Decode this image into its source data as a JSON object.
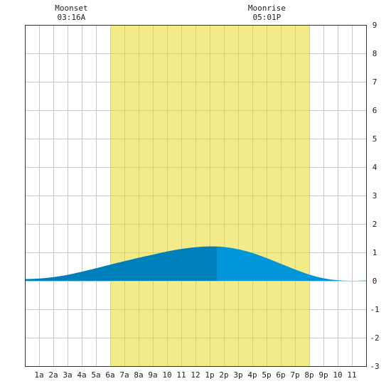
{
  "chart_data": {
    "type": "area",
    "title": "",
    "xlabel": "",
    "ylabel": "",
    "x_ticks": [
      "1a",
      "2a",
      "3a",
      "4a",
      "5a",
      "6a",
      "7a",
      "8a",
      "9a",
      "10",
      "11",
      "12",
      "1p",
      "2p",
      "3p",
      "4p",
      "5p",
      "6p",
      "7p",
      "8p",
      "9p",
      "10",
      "11"
    ],
    "y_ticks": [
      -3,
      -2,
      -1,
      0,
      1,
      2,
      3,
      4,
      5,
      6,
      7,
      8,
      9
    ],
    "xlim": [
      0,
      24
    ],
    "ylim": [
      -3,
      9
    ],
    "grid": true,
    "daylight": {
      "start_hour": 6.0,
      "end_hour": 20.0
    },
    "series": [
      {
        "values": [
          [
            0,
            0.06
          ],
          [
            1,
            0.08
          ],
          [
            2,
            0.13
          ],
          [
            3,
            0.21
          ],
          [
            4,
            0.32
          ],
          [
            5,
            0.44
          ],
          [
            6,
            0.57
          ],
          [
            7,
            0.69
          ],
          [
            8,
            0.81
          ],
          [
            9,
            0.92
          ],
          [
            10,
            1.03
          ],
          [
            11,
            1.12
          ],
          [
            12,
            1.18
          ],
          [
            13,
            1.21
          ],
          [
            14,
            1.19
          ],
          [
            15,
            1.11
          ],
          [
            16,
            0.98
          ],
          [
            17,
            0.8
          ],
          [
            18,
            0.6
          ],
          [
            19,
            0.4
          ],
          [
            20,
            0.22
          ],
          [
            21,
            0.09
          ],
          [
            22,
            0.02
          ],
          [
            23,
            0.0
          ],
          [
            24,
            0.01
          ]
        ]
      }
    ],
    "highlight_split_hour": 13.5,
    "annotations": [
      {
        "label": "Moonset",
        "time": "03:16A",
        "hour": 3.27
      },
      {
        "label": "Moonrise",
        "time": "05:01P",
        "hour": 17.02
      }
    ]
  },
  "colors": {
    "daylight": "#f3eb8a",
    "grid": "#c8c8c8",
    "tide_dark": "#0080bb",
    "tide_light": "#0096d9",
    "axis": "#333333"
  }
}
